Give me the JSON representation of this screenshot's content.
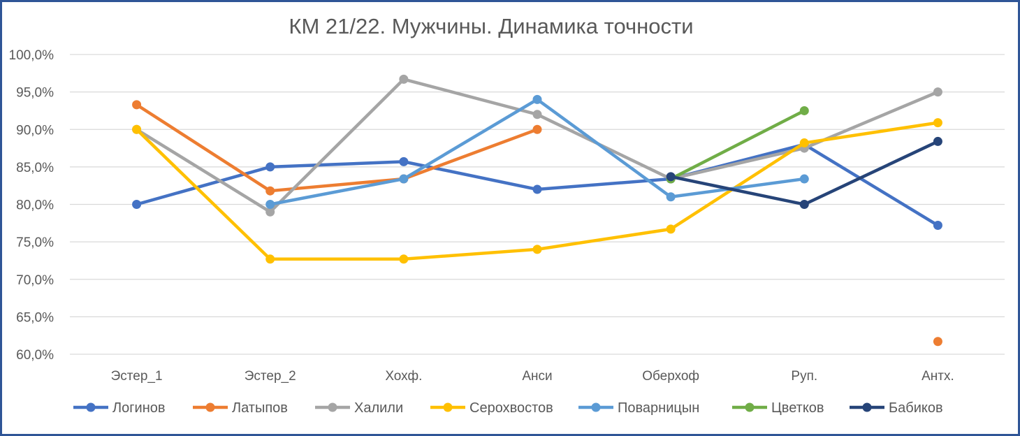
{
  "chart_data": {
    "type": "line",
    "title": "КМ 21/22. Мужчины. Динамика точности",
    "xlabel": "",
    "ylabel": "",
    "categories": [
      "Эстер_1",
      "Эстер_2",
      "Хохф.",
      "Анси",
      "Оберхоф",
      "Руп.",
      "Антх."
    ],
    "ylim": [
      0.6,
      1.0
    ],
    "yticks": [
      "60,0%",
      "65,0%",
      "70,0%",
      "75,0%",
      "80,0%",
      "85,0%",
      "90,0%",
      "95,0%",
      "100,0%"
    ],
    "grid": true,
    "legend_position": "bottom",
    "series": [
      {
        "name": "Логинов",
        "color": "#4472c4",
        "values": [
          0.8,
          0.85,
          0.857,
          0.82,
          0.834,
          0.88,
          0.772
        ]
      },
      {
        "name": "Латыпов",
        "color": "#ed7d31",
        "values": [
          0.933,
          0.818,
          0.834,
          0.9,
          null,
          null,
          0.617
        ]
      },
      {
        "name": "Халили",
        "color": "#a5a5a5",
        "values": [
          0.9,
          0.79,
          0.967,
          0.92,
          0.834,
          0.875,
          0.95
        ]
      },
      {
        "name": "Серохвостов",
        "color": "#ffc000",
        "values": [
          0.9,
          0.727,
          0.727,
          0.74,
          0.767,
          0.882,
          0.909
        ]
      },
      {
        "name": "Поварницын",
        "color": "#5b9bd5",
        "values": [
          null,
          0.8,
          0.834,
          0.94,
          0.81,
          0.834,
          null
        ]
      },
      {
        "name": "Цветков",
        "color": "#70ad47",
        "values": [
          null,
          null,
          null,
          null,
          0.834,
          0.925,
          null
        ]
      },
      {
        "name": "Бабиков",
        "color": "#264478",
        "values": [
          null,
          null,
          null,
          null,
          0.837,
          0.8,
          0.884
        ]
      }
    ]
  }
}
